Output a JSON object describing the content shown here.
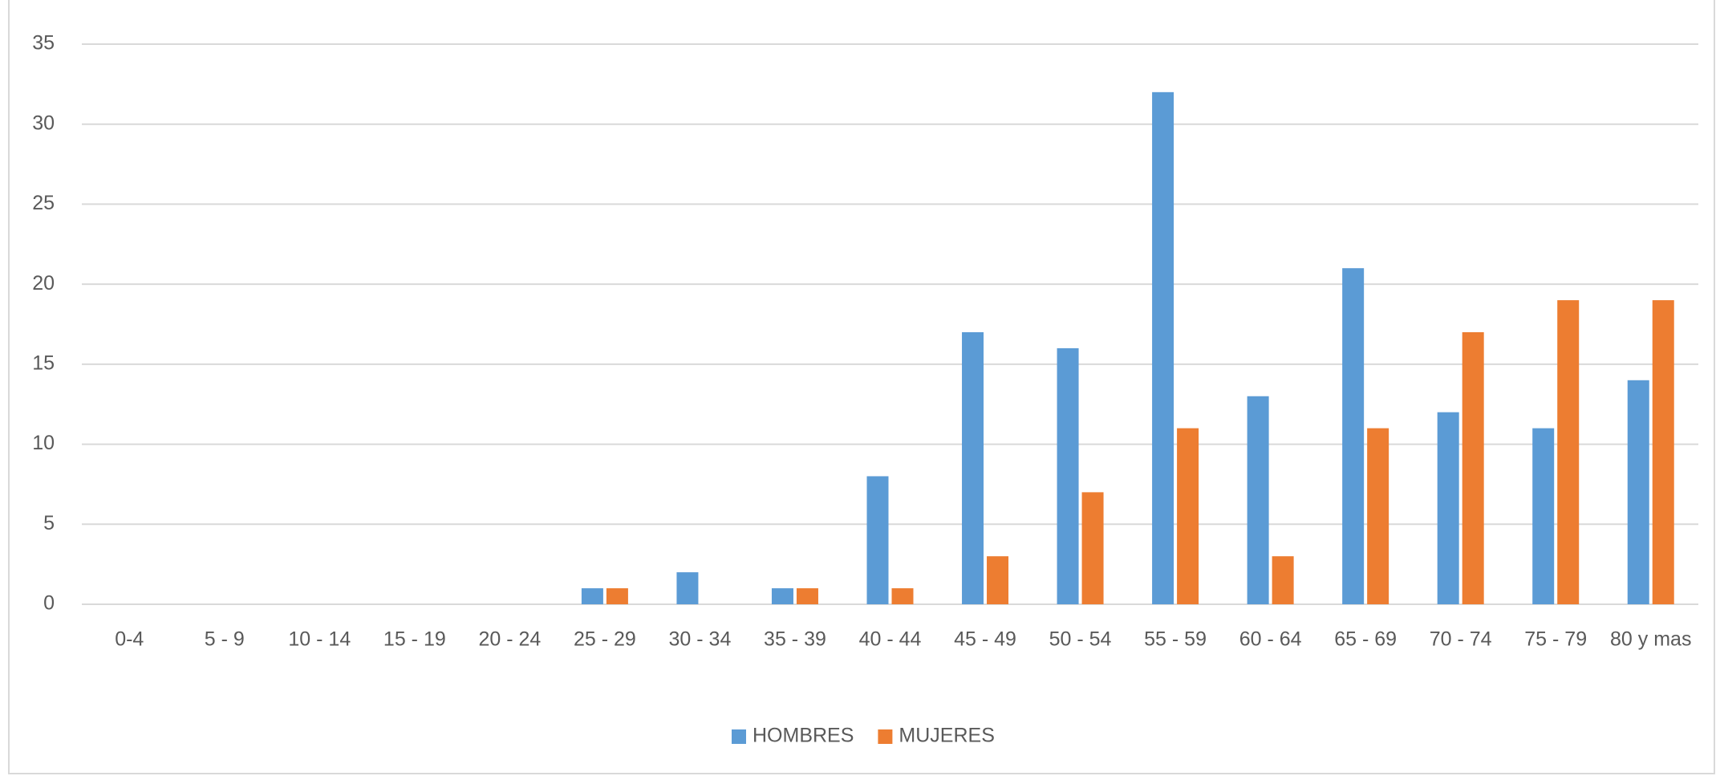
{
  "chart_data": {
    "type": "bar",
    "categories": [
      "0-4",
      "5 - 9",
      "10 - 14",
      "15 - 19",
      "20 - 24",
      "25 - 29",
      "30 - 34",
      "35 - 39",
      "40 - 44",
      "45 - 49",
      "50 - 54",
      "55 - 59",
      "60 - 64",
      "65 - 69",
      "70 - 74",
      "75 - 79",
      "80 y mas"
    ],
    "series": [
      {
        "name": "HOMBRES",
        "color": "#5b9bd5",
        "values": [
          0,
          0,
          0,
          0,
          0,
          1,
          2,
          1,
          8,
          17,
          16,
          32,
          13,
          21,
          12,
          11,
          14
        ]
      },
      {
        "name": "MUJERES",
        "color": "#ed7d31",
        "values": [
          0,
          0,
          0,
          0,
          0,
          1,
          0,
          1,
          1,
          3,
          7,
          11,
          3,
          11,
          17,
          19,
          19
        ]
      }
    ],
    "ylim": [
      0,
      35
    ],
    "yticks": [
      0,
      5,
      10,
      15,
      20,
      25,
      30,
      35
    ],
    "grid": true,
    "legend": "bottom"
  }
}
